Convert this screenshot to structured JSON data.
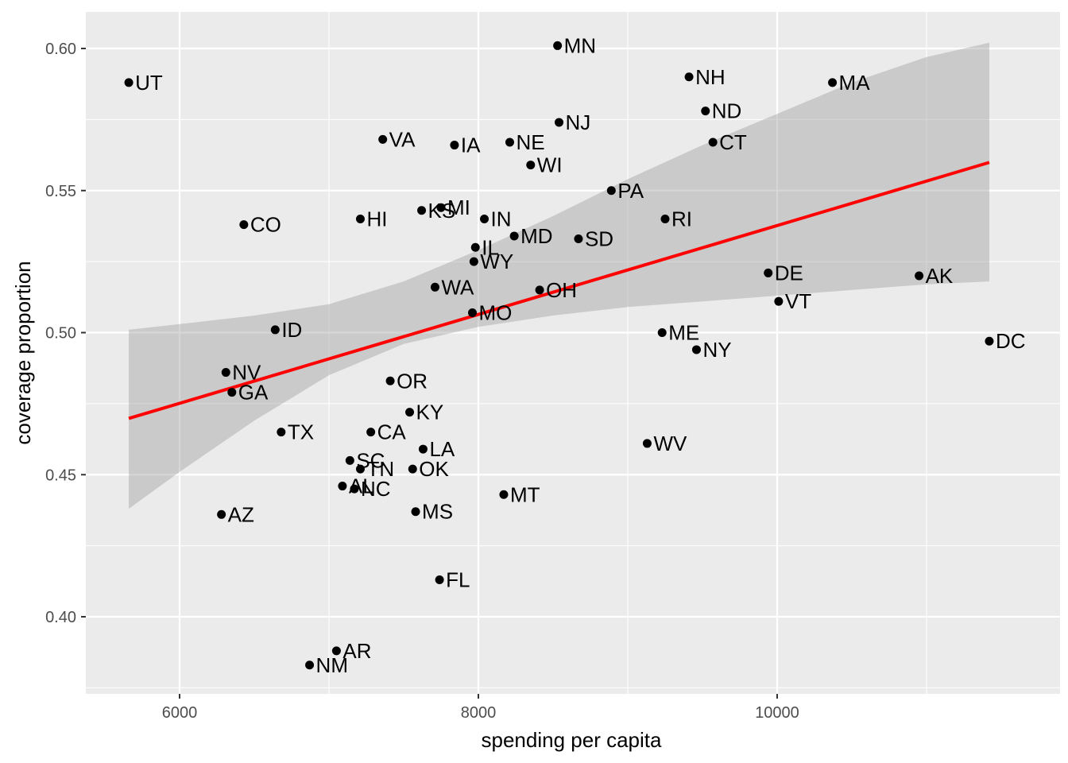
{
  "chart_data": {
    "type": "scatter",
    "xlabel": "spending per capita",
    "ylabel": "coverage proportion",
    "xlim": [
      5450,
      11650
    ],
    "ylim": [
      0.373,
      0.614
    ],
    "x_ticks": [
      6000,
      8000,
      10000
    ],
    "x_minor_ticks": [
      5000,
      7000,
      9000,
      11000
    ],
    "y_ticks": [
      0.4,
      0.45,
      0.5,
      0.55,
      0.6
    ],
    "y_tick_labels": [
      "0.40",
      "0.45",
      "0.50",
      "0.55",
      "0.60"
    ],
    "y_minor_ticks": [
      0.375,
      0.425,
      0.475,
      0.525,
      0.575
    ],
    "grid": true,
    "colors": {
      "panel": "#ebebeb",
      "grid": "#ffffff",
      "point": "#000000",
      "fit_line": "#ff0000",
      "ribbon": "#999999"
    },
    "points": [
      {
        "state": "UT",
        "x": 5660,
        "y": 0.588
      },
      {
        "state": "MN",
        "x": 8530,
        "y": 0.601
      },
      {
        "state": "NH",
        "x": 9410,
        "y": 0.59
      },
      {
        "state": "MA",
        "x": 10370,
        "y": 0.588
      },
      {
        "state": "ND",
        "x": 9520,
        "y": 0.578
      },
      {
        "state": "NJ",
        "x": 8540,
        "y": 0.574
      },
      {
        "state": "VA",
        "x": 7360,
        "y": 0.568
      },
      {
        "state": "IA",
        "x": 7840,
        "y": 0.566
      },
      {
        "state": "NE",
        "x": 8210,
        "y": 0.567
      },
      {
        "state": "CT",
        "x": 9570,
        "y": 0.567
      },
      {
        "state": "WI",
        "x": 8350,
        "y": 0.559
      },
      {
        "state": "PA",
        "x": 8890,
        "y": 0.55
      },
      {
        "state": "MI",
        "x": 7750,
        "y": 0.544
      },
      {
        "state": "KS",
        "x": 7620,
        "y": 0.543
      },
      {
        "state": "HI",
        "x": 7210,
        "y": 0.54
      },
      {
        "state": "IN",
        "x": 8040,
        "y": 0.54
      },
      {
        "state": "RI",
        "x": 9250,
        "y": 0.54
      },
      {
        "state": "CO",
        "x": 6430,
        "y": 0.538
      },
      {
        "state": "MD",
        "x": 8240,
        "y": 0.534
      },
      {
        "state": "SD",
        "x": 8670,
        "y": 0.533
      },
      {
        "state": "IL",
        "x": 7980,
        "y": 0.53
      },
      {
        "state": "WY",
        "x": 7970,
        "y": 0.525
      },
      {
        "state": "DE",
        "x": 9940,
        "y": 0.521
      },
      {
        "state": "AK",
        "x": 10950,
        "y": 0.52
      },
      {
        "state": "WA",
        "x": 7710,
        "y": 0.516
      },
      {
        "state": "OH",
        "x": 8410,
        "y": 0.515
      },
      {
        "state": "VT",
        "x": 10010,
        "y": 0.511
      },
      {
        "state": "MO",
        "x": 7960,
        "y": 0.507
      },
      {
        "state": "ID",
        "x": 6640,
        "y": 0.501
      },
      {
        "state": "ME",
        "x": 9230,
        "y": 0.5
      },
      {
        "state": "DC",
        "x": 11420,
        "y": 0.497
      },
      {
        "state": "NY",
        "x": 9460,
        "y": 0.494
      },
      {
        "state": "NV",
        "x": 6310,
        "y": 0.486
      },
      {
        "state": "OR",
        "x": 7410,
        "y": 0.483
      },
      {
        "state": "GA",
        "x": 6350,
        "y": 0.479
      },
      {
        "state": "KY",
        "x": 7540,
        "y": 0.472
      },
      {
        "state": "TX",
        "x": 6680,
        "y": 0.465
      },
      {
        "state": "CA",
        "x": 7280,
        "y": 0.465
      },
      {
        "state": "WV",
        "x": 9130,
        "y": 0.461
      },
      {
        "state": "LA",
        "x": 7630,
        "y": 0.459
      },
      {
        "state": "SC",
        "x": 7140,
        "y": 0.455
      },
      {
        "state": "TN",
        "x": 7210,
        "y": 0.452
      },
      {
        "state": "OK",
        "x": 7560,
        "y": 0.452
      },
      {
        "state": "AL",
        "x": 7090,
        "y": 0.446
      },
      {
        "state": "NC",
        "x": 7170,
        "y": 0.445
      },
      {
        "state": "MT",
        "x": 8170,
        "y": 0.443
      },
      {
        "state": "MS",
        "x": 7580,
        "y": 0.437
      },
      {
        "state": "AZ",
        "x": 6280,
        "y": 0.436
      },
      {
        "state": "FL",
        "x": 7740,
        "y": 0.413
      },
      {
        "state": "AR",
        "x": 7050,
        "y": 0.388
      },
      {
        "state": "NM",
        "x": 6870,
        "y": 0.383
      }
    ],
    "fit_line": {
      "x": [
        5660,
        11420
      ],
      "y": [
        0.4698,
        0.5599
      ]
    },
    "confidence_band": [
      {
        "x": 5660,
        "lower": 0.438,
        "upper": 0.501
      },
      {
        "x": 6000,
        "lower": 0.451,
        "upper": 0.503
      },
      {
        "x": 6500,
        "lower": 0.469,
        "upper": 0.506
      },
      {
        "x": 7000,
        "lower": 0.485,
        "upper": 0.51
      },
      {
        "x": 7500,
        "lower": 0.496,
        "upper": 0.518
      },
      {
        "x": 8000,
        "lower": 0.502,
        "upper": 0.529
      },
      {
        "x": 8500,
        "lower": 0.506,
        "upper": 0.541
      },
      {
        "x": 9000,
        "lower": 0.509,
        "upper": 0.554
      },
      {
        "x": 9500,
        "lower": 0.511,
        "upper": 0.566
      },
      {
        "x": 10000,
        "lower": 0.513,
        "upper": 0.577
      },
      {
        "x": 10500,
        "lower": 0.515,
        "upper": 0.588
      },
      {
        "x": 11000,
        "lower": 0.517,
        "upper": 0.597
      },
      {
        "x": 11420,
        "lower": 0.518,
        "upper": 0.602
      }
    ]
  }
}
